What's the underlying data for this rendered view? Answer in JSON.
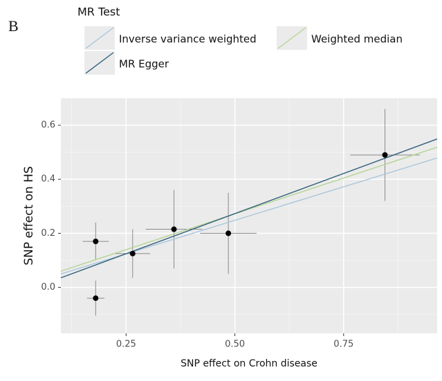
{
  "chart_data": {
    "type": "scatter",
    "panel_label": "B",
    "legend_title": "MR Test",
    "x_label": "SNP effect on Crohn disease",
    "y_label": "SNP effect on HS",
    "xlim": [
      0.1,
      0.965
    ],
    "ylim": [
      -0.17,
      0.7
    ],
    "xticks": [
      {
        "value": 0.25,
        "label": "0.25"
      },
      {
        "value": 0.5,
        "label": "0.50"
      },
      {
        "value": 0.75,
        "label": "0.75"
      }
    ],
    "yticks": [
      {
        "value": 0,
        "label": "0.0"
      },
      0.2,
      0.4,
      0.6
    ],
    "grid": true,
    "points": {
      "x": [
        0.18,
        0.18,
        0.265,
        0.36,
        0.485,
        0.845
      ],
      "y": [
        0.17,
        -0.04,
        0.125,
        0.215,
        0.2,
        0.49
      ],
      "x_err": [
        0.03,
        0.02,
        0.04,
        0.065,
        0.065,
        0.08
      ],
      "y_err": [
        0.07,
        0.065,
        0.09,
        0.145,
        0.15,
        0.17
      ],
      "color": "#000000"
    },
    "series": [
      {
        "name": "Inverse variance weighted",
        "color": "#a9c6dc",
        "slope": 0.496,
        "intercept": 0
      },
      {
        "name": "Weighted median",
        "color": "#b5d494",
        "slope": 0.53,
        "intercept": 0.007
      },
      {
        "name": "MR Egger",
        "color": "#2f5f7a",
        "slope": 0.594,
        "intercept": -0.024
      }
    ]
  }
}
